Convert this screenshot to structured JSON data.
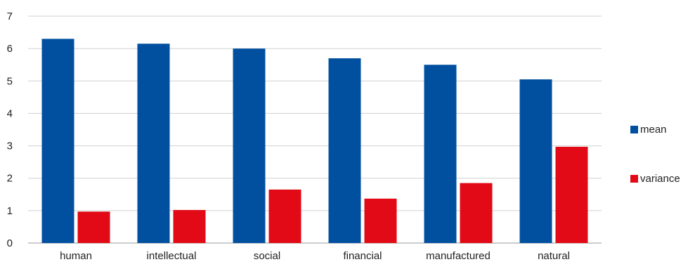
{
  "chart_data": {
    "type": "bar",
    "title": "",
    "xlabel": "",
    "ylabel": "",
    "categories": [
      "human",
      "intellectual",
      "social",
      "financial",
      "manufactured",
      "natural"
    ],
    "series": [
      {
        "name": "mean",
        "color": "#0150a0",
        "values": [
          6.3,
          6.15,
          6.0,
          5.7,
          5.5,
          5.05
        ]
      },
      {
        "name": "variance",
        "color": "#e10a16",
        "values": [
          0.97,
          1.02,
          1.65,
          1.37,
          1.85,
          2.97
        ]
      }
    ],
    "ylim": [
      0,
      7
    ],
    "yticks": [
      0,
      1,
      2,
      3,
      4,
      5,
      6,
      7
    ],
    "grid": true,
    "legend_position": "right"
  }
}
